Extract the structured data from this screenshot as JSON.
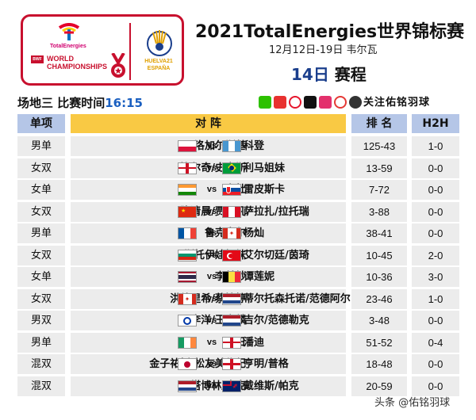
{
  "header": {
    "sponsor_text": "TotalEnergies",
    "bwf_text": "BWF",
    "wc_text_1": "WORLD",
    "wc_text_2": "CHAMPIONSHIPS",
    "host_text_1": "HUELVA21",
    "host_text_2": "ESPAÑA",
    "title": "2021TotalEnergies世界锦标赛",
    "dates": "12月12日-19日 韦尔瓦",
    "day_num": "14日",
    "day_label": " 赛程"
  },
  "court": {
    "label": "场地三 比赛时间",
    "time": "16:15"
  },
  "social": {
    "icons": [
      "wechat-icon",
      "toutiao-icon",
      "weibo-icon",
      "douyin-icon",
      "xigua-icon",
      "video-icon",
      "camera-icon"
    ],
    "follow": "关注佑铭羽球"
  },
  "table": {
    "headers": {
      "event": "单项",
      "match": "对 阵",
      "rank": "排 名",
      "h2h": "H2H"
    },
    "rows": [
      {
        "event": "男单",
        "p1": "洛加尔斯基",
        "f1": "poland",
        "vs": "vs",
        "f2": "guatemala",
        "p2": "科登",
        "rank": "125-43",
        "h2h": "1-0"
      },
      {
        "event": "女双",
        "p1": "比尔奇/史密斯",
        "f1": "england",
        "vs": "vs",
        "f2": "brazil",
        "p2": "利马姐妹",
        "rank": "13-59",
        "h2h": "0-0"
      },
      {
        "event": "女单",
        "p1": "辛杜",
        "f1": "india",
        "vs": "vs",
        "f2": "slovakia",
        "p2": "雷皮斯卡",
        "rank": "7-72",
        "h2h": "0-0"
      },
      {
        "event": "女双",
        "p1": "陈清晨/贾一凡",
        "f1": "china",
        "vs": "vs",
        "f2": "peru",
        "p2": "萨拉扎/拉托瑞",
        "rank": "3-88",
        "h2h": "0-0"
      },
      {
        "event": "男单",
        "p1": "鲁克赛尔",
        "f1": "france",
        "vs": "vs",
        "f2": "canada",
        "p2": "杨灿",
        "rank": "38-41",
        "h2h": "0-0"
      },
      {
        "event": "女双",
        "p1": "斯托伊娃姐妹",
        "f1": "bulgaria",
        "vs": "vs",
        "f2": "turkey",
        "p2": "艾尔切廷/茵琦",
        "rank": "10-45",
        "h2h": "2-0"
      },
      {
        "event": "女单",
        "p1": "李美妙",
        "f1": "thailand",
        "vs": "vs",
        "f2": "belgium",
        "p2": "谭莲妮",
        "rank": "10-36",
        "h2h": "3-0"
      },
      {
        "event": "女双",
        "p1": "洪德里希/蔡婉婷",
        "f1": "canada",
        "vs": "vs",
        "f2": "netherlands",
        "p2": "蒂尔托森托诺/范德阿尔",
        "rank": "23-46",
        "h2h": "1-0"
      },
      {
        "event": "男双",
        "p1": "李洋/王齐麟",
        "f1": "taipei",
        "vs": "vs",
        "f2": "netherlands",
        "p2": "吉尔/范德勒克",
        "rank": "3-48",
        "h2h": "0-0"
      },
      {
        "event": "男单",
        "p1": "阮日",
        "f1": "ireland",
        "vs": "vs",
        "f2": "england",
        "p2": "潘迪",
        "rank": "51-52",
        "h2h": "0-4"
      },
      {
        "event": "混双",
        "p1": "金子祐树/松友美佐纪",
        "f1": "japan",
        "vs": "vs",
        "f2": "england",
        "p2": "亨明/普格",
        "rank": "18-48",
        "h2h": "0-0"
      },
      {
        "event": "混双",
        "p1": "塔博林/皮克",
        "f1": "netherlands",
        "vs": "vs",
        "f2": "newzealand",
        "p2": "戴维斯/帕克",
        "rank": "20-59",
        "h2h": "0-0"
      }
    ]
  },
  "watermark": "头条 @佑铭羽球",
  "colors": {
    "brand_red": "#c8102e",
    "header_blue": "#b5c6e7",
    "header_gold": "#f9c944",
    "row_gray": "#ececec",
    "time_blue": "#1a5fc0"
  }
}
